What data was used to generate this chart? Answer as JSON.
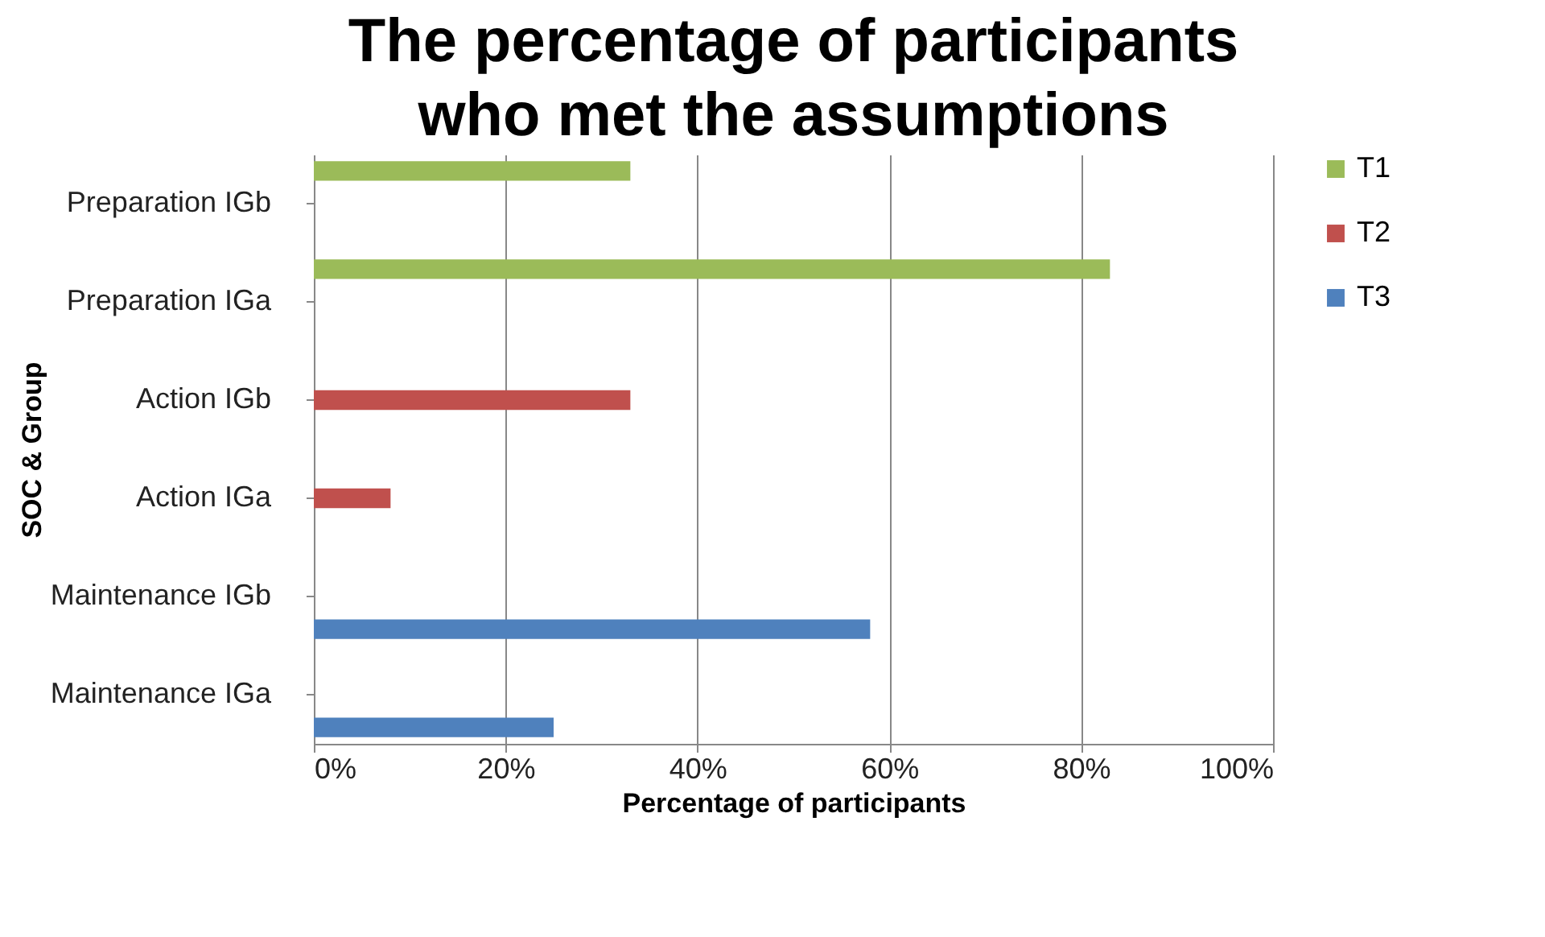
{
  "chart_data": {
    "type": "bar",
    "orientation": "horizontal",
    "title": "The percentage of participants who met the assumptions",
    "xlabel": "Percentage of participants",
    "ylabel": "SOC & Group",
    "categories": [
      "Preparation IGb",
      "Preparation IGa",
      "Action IGb",
      "Action IGa",
      "Maintenance IGb",
      "Maintenance IGa"
    ],
    "series": [
      {
        "name": "T1",
        "color": "#9bbb59",
        "values": [
          33,
          83,
          null,
          null,
          null,
          null
        ]
      },
      {
        "name": "T2",
        "color": "#c0504d",
        "values": [
          null,
          null,
          33,
          8,
          null,
          null
        ]
      },
      {
        "name": "T3",
        "color": "#4f81bd",
        "values": [
          null,
          null,
          null,
          null,
          58,
          25
        ]
      }
    ],
    "xlim": [
      0,
      100
    ],
    "xticks": [
      {
        "value": 0,
        "label": "0%"
      },
      {
        "value": 20,
        "label": "20%"
      },
      {
        "value": 40,
        "label": "40%"
      },
      {
        "value": 60,
        "label": "60%"
      },
      {
        "value": 80,
        "label": "80%"
      },
      {
        "value": 100,
        "label": "100%"
      }
    ],
    "grid": "x",
    "legend": "right"
  }
}
